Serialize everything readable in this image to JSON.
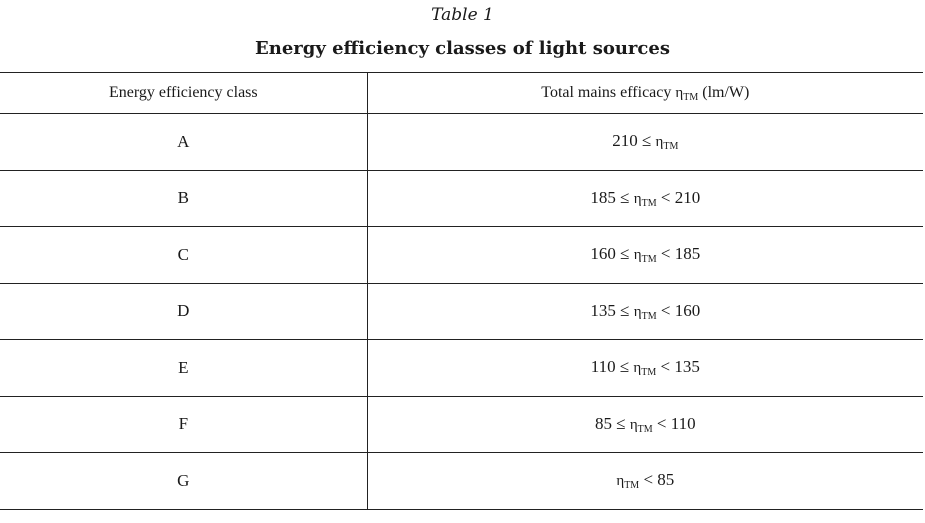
{
  "table_label": "Table 1",
  "table_title": "Energy efficiency classes of light sources",
  "columns": {
    "class": "Energy efficiency class",
    "efficacy_prefix": "Total mains efficacy ",
    "efficacy_symbol": "η",
    "efficacy_sub": "TM",
    "efficacy_unit": " (lm/W)"
  },
  "rows": [
    {
      "class": "A",
      "lower": "210 ≤ ",
      "symbol": "η",
      "sub": "TM",
      "upper": ""
    },
    {
      "class": "B",
      "lower": "185 ≤ ",
      "symbol": "η",
      "sub": "TM",
      "upper": " < 210"
    },
    {
      "class": "C",
      "lower": "160 ≤ ",
      "symbol": "η",
      "sub": "TM",
      "upper": " < 185"
    },
    {
      "class": "D",
      "lower": "135 ≤ ",
      "symbol": "η",
      "sub": "TM",
      "upper": " < 160"
    },
    {
      "class": "E",
      "lower": "110 ≤ ",
      "symbol": "η",
      "sub": "TM",
      "upper": " < 135"
    },
    {
      "class": "F",
      "lower": "85 ≤ ",
      "symbol": "η",
      "sub": "TM",
      "upper": " < 110"
    },
    {
      "class": "G",
      "lower": "",
      "symbol": "η",
      "sub": "TM",
      "upper": " < 85"
    }
  ]
}
